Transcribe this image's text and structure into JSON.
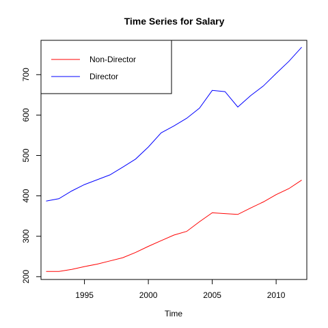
{
  "chart_data": {
    "type": "line",
    "title": "Time Series for Salary",
    "xlabel": "Time",
    "ylabel": "",
    "xlim": [
      1991.6,
      2012.4
    ],
    "ylim": [
      193,
      785
    ],
    "x_ticks": [
      1995,
      2000,
      2005,
      2010
    ],
    "y_ticks": [
      200,
      300,
      400,
      500,
      600,
      700
    ],
    "grid": false,
    "legend_position": "top-left",
    "x": [
      1992,
      1993,
      1994,
      1995,
      1996,
      1997,
      1998,
      1999,
      2000,
      2001,
      2002,
      2003,
      2004,
      2005,
      2006,
      2007,
      2008,
      2009,
      2010,
      2011,
      2012
    ],
    "series": [
      {
        "name": "Non-Director",
        "color": "#ff0000",
        "values": [
          213,
          213,
          218,
          225,
          231,
          239,
          247,
          260,
          275,
          289,
          303,
          312,
          336,
          358,
          356,
          354,
          370,
          385,
          403,
          418,
          439
        ]
      },
      {
        "name": "Director",
        "color": "#0000ff",
        "values": [
          387,
          393,
          412,
          428,
          440,
          452,
          471,
          491,
          521,
          556,
          573,
          592,
          617,
          661,
          658,
          620,
          648,
          672,
          703,
          733,
          768
        ]
      }
    ]
  }
}
